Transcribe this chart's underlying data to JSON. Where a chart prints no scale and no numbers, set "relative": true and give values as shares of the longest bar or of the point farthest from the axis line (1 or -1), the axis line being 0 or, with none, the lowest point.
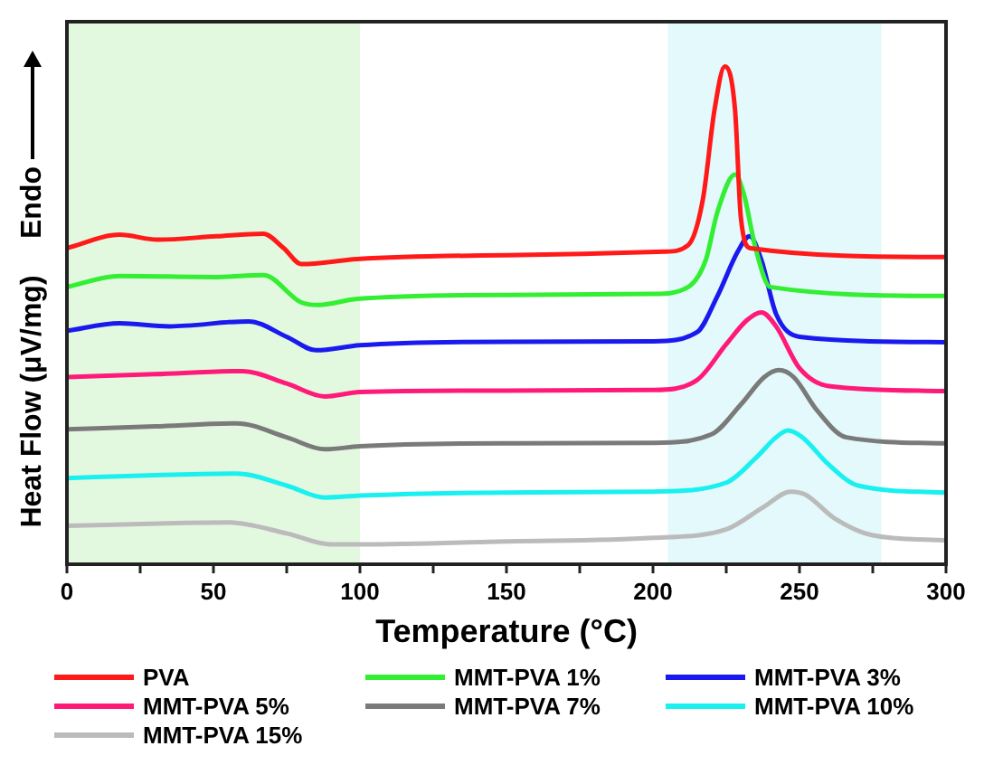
{
  "chart_data": {
    "type": "line",
    "relative": true,
    "xlabel": "Temperature (°C)",
    "ylabel": "Heat Flow (μV/mg)",
    "annotations": [
      "Endo"
    ],
    "xlim": [
      0,
      300
    ],
    "xticks": [
      0,
      {
        "value": 25,
        "label": null
      },
      50,
      {
        "value": 75,
        "label": null
      },
      100,
      {
        "value": 125,
        "label": null
      },
      150,
      {
        "value": 175,
        "label": null
      },
      200,
      {
        "value": 225,
        "label": null
      },
      250,
      {
        "value": 275,
        "label": null
      },
      300
    ],
    "legend": "bottom",
    "grid": false,
    "marker": "none",
    "line_style": "solid",
    "bands": [
      {
        "axis": "x",
        "from": 0,
        "to": 100,
        "color": "#b8f0b0"
      },
      {
        "axis": "x",
        "from": 205,
        "to": 278,
        "color": "#b8f0f4"
      }
    ],
    "series": [
      {
        "name": "PVA",
        "color": "#ff1a1a",
        "x": [
          0,
          18,
          31,
          51,
          67,
          74,
          80,
          99,
          150,
          204,
          212,
          217,
          221,
          224.5,
          228,
          230,
          233.3,
          300
        ],
        "values": [
          0.635,
          0.662,
          0.652,
          0.659,
          0.664,
          0.635,
          0.603,
          0.613,
          0.621,
          0.628,
          0.641,
          0.732,
          0.913,
          1,
          0.913,
          0.696,
          0.635,
          0.617
        ]
      },
      {
        "name": "MMT-PVA 1%",
        "color": "#33ee33",
        "x": [
          0,
          18,
          51,
          67,
          80,
          86,
          99,
          150,
          200,
          212,
          218,
          222,
          228,
          231,
          235,
          240,
          300
        ],
        "values": [
          0.557,
          0.579,
          0.577,
          0.581,
          0.526,
          0.521,
          0.533,
          0.541,
          0.543,
          0.557,
          0.611,
          0.708,
          0.783,
          0.744,
          0.635,
          0.557,
          0.539
        ]
      },
      {
        "name": "MMT-PVA 3%",
        "color": "#1a1aee",
        "x": [
          0,
          18,
          35,
          62,
          75,
          85,
          100,
          150,
          200,
          215,
          222,
          229,
          233,
          237,
          242,
          250,
          300
        ],
        "values": [
          0.469,
          0.484,
          0.478,
          0.488,
          0.457,
          0.43,
          0.44,
          0.447,
          0.448,
          0.466,
          0.539,
          0.629,
          0.659,
          0.611,
          0.503,
          0.457,
          0.446
        ]
      },
      {
        "name": "MMT-PVA 5%",
        "color": "#ff1a7a",
        "x": [
          0,
          30,
          60,
          75,
          88,
          100,
          150,
          200,
          215,
          225,
          232,
          237,
          242,
          250,
          260,
          300
        ],
        "values": [
          0.376,
          0.382,
          0.388,
          0.363,
          0.337,
          0.346,
          0.349,
          0.35,
          0.37,
          0.442,
          0.49,
          0.506,
          0.478,
          0.394,
          0.358,
          0.348
        ]
      },
      {
        "name": "MMT-PVA 7%",
        "color": "#7a7a7a",
        "x": [
          0,
          30,
          58,
          75,
          88,
          100,
          150,
          200,
          220,
          230,
          238,
          243,
          248,
          256,
          266,
          300
        ],
        "values": [
          0.271,
          0.277,
          0.283,
          0.255,
          0.231,
          0.237,
          0.243,
          0.244,
          0.261,
          0.321,
          0.376,
          0.39,
          0.376,
          0.309,
          0.255,
          0.243
        ]
      },
      {
        "name": "MMT-PVA 10%",
        "color": "#1af0f0",
        "x": [
          0,
          30,
          58,
          75,
          88,
          100,
          150,
          200,
          225,
          235,
          242,
          246,
          251,
          260,
          270,
          300
        ],
        "values": [
          0.173,
          0.179,
          0.182,
          0.158,
          0.134,
          0.138,
          0.144,
          0.146,
          0.164,
          0.213,
          0.255,
          0.269,
          0.255,
          0.2,
          0.158,
          0.144
        ]
      },
      {
        "name": "MMT-PVA 15%",
        "color": "#bbbbbb",
        "x": [
          0,
          40,
          55,
          75,
          90,
          100,
          150,
          200,
          225,
          238,
          247,
          252,
          262,
          275,
          300
        ],
        "values": [
          0.077,
          0.083,
          0.084,
          0.062,
          0.04,
          0.04,
          0.046,
          0.053,
          0.07,
          0.116,
          0.146,
          0.14,
          0.092,
          0.058,
          0.048
        ]
      }
    ]
  }
}
